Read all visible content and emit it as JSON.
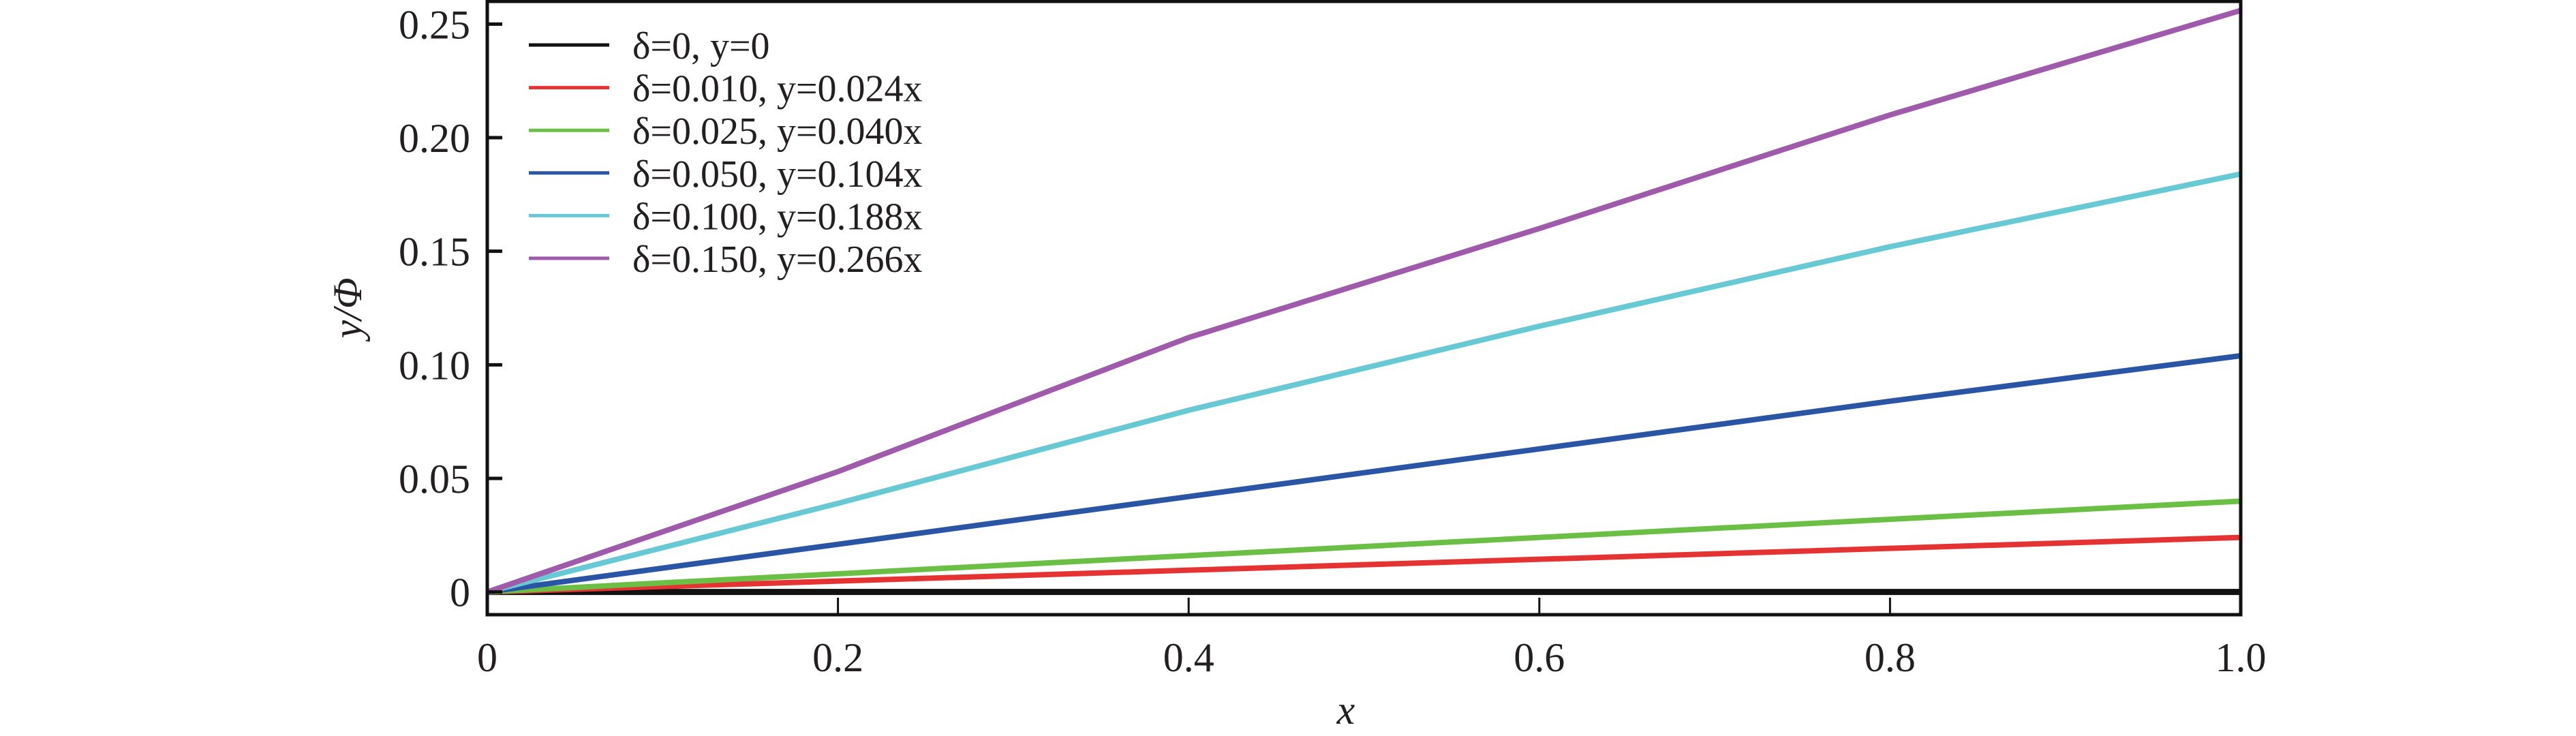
{
  "chart_data": {
    "type": "line",
    "title": "",
    "xlabel": "x",
    "ylabel": "y/Φ",
    "xlim": [
      0,
      1.0
    ],
    "ylim": [
      -0.01,
      0.26
    ],
    "xticks": [
      "0",
      "0.2",
      "0.4",
      "0.6",
      "0.8",
      "1.0"
    ],
    "xtick_values": [
      0,
      0.2,
      0.4,
      0.6,
      0.8,
      1.0
    ],
    "yticks": [
      "0",
      "0.05",
      "0.10",
      "0.15",
      "0.20",
      "0.25"
    ],
    "ytick_values": [
      0,
      0.05,
      0.1,
      0.15,
      0.2,
      0.25
    ],
    "grid": false,
    "legend_position": "top-left",
    "x": [
      0,
      0.2,
      0.4,
      0.6,
      0.8,
      1.0
    ],
    "series": [
      {
        "name": "δ=0, y=0",
        "delta": "δ=0",
        "fit": "y=0",
        "color": "#111111",
        "values": [
          0,
          0,
          0,
          0,
          0,
          0
        ]
      },
      {
        "name": "δ=0.010, y=0.024x",
        "delta": "δ=0.010",
        "fit": "y=0.024x",
        "color": "#e53333",
        "values": [
          0,
          0.0048,
          0.0096,
          0.0144,
          0.0192,
          0.024
        ]
      },
      {
        "name": "δ=0.025, y=0.040x",
        "delta": "δ=0.025",
        "fit": "y=0.040x",
        "color": "#6cbf45",
        "values": [
          0,
          0.008,
          0.016,
          0.024,
          0.032,
          0.04
        ]
      },
      {
        "name": "δ=0.050, y=0.104x",
        "delta": "δ=0.050",
        "fit": "y=0.104x",
        "color": "#2a55a5",
        "values": [
          0,
          0.021,
          0.042,
          0.063,
          0.084,
          0.104
        ]
      },
      {
        "name": "δ=0.100, y=0.188x",
        "delta": "δ=0.100",
        "fit": "y=0.188x",
        "color": "#66c9d4",
        "values": [
          0,
          0.039,
          0.08,
          0.117,
          0.152,
          0.184
        ]
      },
      {
        "name": "δ=0.150, y=0.266x",
        "delta": "δ=0.150",
        "fit": "y=0.266x",
        "color": "#a05aab",
        "values": [
          0,
          0.053,
          0.112,
          0.16,
          0.21,
          0.256
        ]
      }
    ]
  }
}
